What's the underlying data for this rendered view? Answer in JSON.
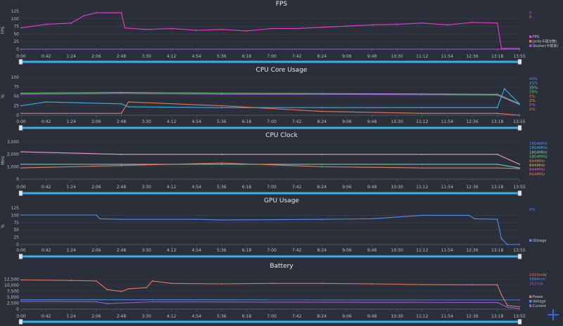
{
  "time_ticks": [
    "0:00",
    "0:42",
    "1:24",
    "2:06",
    "2:48",
    "3:30",
    "4:12",
    "4:54",
    "5:36",
    "6:18",
    "7:00",
    "7:42",
    "8:24",
    "9:06",
    "9:48",
    "10:30",
    "11:12",
    "11:54",
    "12:36",
    "13:18",
    "13:55"
  ],
  "colors": {
    "bg": "#2b2f3a",
    "grid": "#3c4150",
    "scrollbar": "#33b3ea",
    "zoom": "#2f6bd6"
  },
  "chart_data": [
    {
      "type": "line",
      "title": "FPS",
      "ylabel": "FPS",
      "ylim": [
        0,
        125
      ],
      "yticks": [
        0,
        25,
        50,
        75,
        100,
        125
      ],
      "x_range": [
        "0:00",
        "13:55"
      ],
      "grid": true,
      "legend_position": "right",
      "legend": [
        "FPS",
        "Jank(卡顿次数)",
        "Stutter(卡顿率)"
      ],
      "right_values": [
        {
          "text": "0",
          "color": "#9b59d0"
        },
        {
          "text": "0",
          "color": "#e8765c"
        }
      ],
      "series": [
        {
          "name": "FPS",
          "color": "#e83ccf",
          "points": [
            [
              "0:00",
              70
            ],
            [
              "0:42",
              82
            ],
            [
              "1:24",
              86
            ],
            [
              "1:45",
              110
            ],
            [
              "2:06",
              120
            ],
            [
              "2:48",
              120
            ],
            [
              "2:54",
              70
            ],
            [
              "3:30",
              65
            ],
            [
              "4:12",
              68
            ],
            [
              "4:54",
              62
            ],
            [
              "5:36",
              65
            ],
            [
              "6:18",
              60
            ],
            [
              "7:00",
              68
            ],
            [
              "7:42",
              68
            ],
            [
              "8:24",
              72
            ],
            [
              "9:06",
              76
            ],
            [
              "9:48",
              80
            ],
            [
              "10:30",
              82
            ],
            [
              "11:12",
              86
            ],
            [
              "11:54",
              80
            ],
            [
              "12:36",
              88
            ],
            [
              "13:18",
              86
            ],
            [
              "13:25",
              2
            ],
            [
              "13:55",
              2
            ]
          ]
        },
        {
          "name": "Jank(卡顿次数)",
          "color": "#e8765c",
          "points": [
            [
              "0:00",
              0
            ],
            [
              "13:55",
              0
            ]
          ]
        },
        {
          "name": "Stutter(卡顿率)",
          "color": "#9b59d0",
          "points": [
            [
              "0:00",
              0
            ],
            [
              "13:55",
              0
            ]
          ]
        }
      ]
    },
    {
      "type": "line",
      "title": "CPU Core Usage",
      "ylabel": "%",
      "ylim": [
        0,
        100
      ],
      "yticks": [
        0,
        25,
        50,
        75,
        100
      ],
      "x_range": [
        "0:00",
        "13:55"
      ],
      "grid": true,
      "legend_position": "right",
      "right_values": [
        {
          "text": "49%",
          "color": "#4f8df0"
        },
        {
          "text": "21%",
          "color": "#33b3ea"
        },
        {
          "text": "35%",
          "color": "#7fd0c8"
        },
        {
          "text": "29%",
          "color": "#5fd068"
        },
        {
          "text": "0%",
          "color": "#e8765c"
        },
        {
          "text": "2%",
          "color": "#e2b33c"
        },
        {
          "text": "0%",
          "color": "#d05fc8"
        },
        {
          "text": "0%",
          "color": "#e8765c"
        }
      ],
      "series": [
        {
          "color": "#5fd068",
          "points": [
            [
              "0:00",
              58
            ],
            [
              "2:48",
              60
            ],
            [
              "5:36",
              58
            ],
            [
              "8:24",
              57
            ],
            [
              "11:12",
              56
            ],
            [
              "13:18",
              55
            ],
            [
              "13:55",
              30
            ]
          ]
        },
        {
          "color": "#9b59d0",
          "points": [
            [
              "0:00",
              55
            ],
            [
              "2:48",
              57
            ],
            [
              "5:36",
              55
            ],
            [
              "8:24",
              55
            ],
            [
              "11:12",
              54
            ],
            [
              "13:18",
              53
            ],
            [
              "13:55",
              28
            ]
          ]
        },
        {
          "color": "#33b3ea",
          "points": [
            [
              "0:00",
              25
            ],
            [
              "0:42",
              35
            ],
            [
              "2:48",
              30
            ],
            [
              "3:00",
              22
            ],
            [
              "5:36",
              20
            ],
            [
              "8:24",
              20
            ],
            [
              "11:12",
              20
            ],
            [
              "13:18",
              20
            ],
            [
              "13:30",
              70
            ],
            [
              "13:55",
              30
            ]
          ]
        },
        {
          "color": "#e8765c",
          "points": [
            [
              "0:00",
              5
            ],
            [
              "2:48",
              5
            ],
            [
              "3:00",
              35
            ],
            [
              "5:36",
              25
            ],
            [
              "8:24",
              10
            ],
            [
              "11:12",
              5
            ],
            [
              "13:18",
              5
            ],
            [
              "13:55",
              0
            ]
          ]
        }
      ]
    },
    {
      "type": "line",
      "title": "CPU Clock",
      "ylabel": "MHz",
      "ylim": [
        0,
        3000
      ],
      "yticks": [
        0,
        1000,
        2000,
        3000
      ],
      "x_range": [
        "0:00",
        "13:55"
      ],
      "grid": true,
      "legend_position": "right",
      "right_values": [
        {
          "text": "1804MHz",
          "color": "#4f8df0"
        },
        {
          "text": "1804MHz",
          "color": "#33b3ea"
        },
        {
          "text": "1804MHz",
          "color": "#7fd0c8"
        },
        {
          "text": "1804MHz",
          "color": "#5fd068"
        },
        {
          "text": "844MHz",
          "color": "#e8765c"
        },
        {
          "text": "844MHz",
          "color": "#e2b33c"
        },
        {
          "text": "844MHz",
          "color": "#d05fc8"
        },
        {
          "text": "844MHz",
          "color": "#e8765c"
        }
      ],
      "series": [
        {
          "color": "#e89acb",
          "points": [
            [
              "0:00",
              2200
            ],
            [
              "2:48",
              2000
            ],
            [
              "5:36",
              2000
            ],
            [
              "8:24",
              2000
            ],
            [
              "11:12",
              2000
            ],
            [
              "13:18",
              2000
            ],
            [
              "13:55",
              1200
            ]
          ]
        },
        {
          "color": "#5fd0b0",
          "points": [
            [
              "0:00",
              1200
            ],
            [
              "2:48",
              1200
            ],
            [
              "5:36",
              1200
            ],
            [
              "8:24",
              1200
            ],
            [
              "11:12",
              1200
            ],
            [
              "13:18",
              1200
            ],
            [
              "13:55",
              900
            ]
          ]
        },
        {
          "color": "#e8765c",
          "points": [
            [
              "0:00",
              900
            ],
            [
              "2:48",
              1100
            ],
            [
              "5:36",
              1300
            ],
            [
              "8:24",
              1000
            ],
            [
              "11:12",
              900
            ],
            [
              "13:18",
              900
            ],
            [
              "13:55",
              844
            ]
          ]
        }
      ]
    },
    {
      "type": "line",
      "title": "GPU Usage",
      "ylabel": "%",
      "ylim": [
        0,
        125
      ],
      "yticks": [
        0,
        25,
        50,
        75,
        100,
        125
      ],
      "x_range": [
        "0:00",
        "13:55"
      ],
      "grid": true,
      "legend_position": "right",
      "legend": [
        "GUsage"
      ],
      "right_values": [
        {
          "text": "0%",
          "color": "#4f8df0"
        }
      ],
      "series": [
        {
          "name": "GUsage",
          "color": "#4f8df0",
          "points": [
            [
              "0:00",
              101
            ],
            [
              "2:06",
              101
            ],
            [
              "2:12",
              88
            ],
            [
              "2:48",
              86
            ],
            [
              "4:54",
              86
            ],
            [
              "5:36",
              84
            ],
            [
              "8:24",
              86
            ],
            [
              "9:48",
              88
            ],
            [
              "11:12",
              100
            ],
            [
              "12:30",
              100
            ],
            [
              "12:40",
              88
            ],
            [
              "13:18",
              86
            ],
            [
              "13:25",
              20
            ],
            [
              "13:35",
              0
            ],
            [
              "13:55",
              0
            ]
          ]
        }
      ]
    },
    {
      "type": "line",
      "title": "Battery",
      "ylim": [
        0,
        15000
      ],
      "yticks": [
        0,
        2500,
        5000,
        7500,
        10000,
        12500
      ],
      "x_range": [
        "0:00",
        "13:55"
      ],
      "grid": true,
      "legend_position": "right",
      "legend": [
        "Power",
        "Voltage",
        "Current"
      ],
      "right_values": [
        {
          "text": "1025mW",
          "color": "#e8765c"
        },
        {
          "text": "3894mV",
          "color": "#4f8df0"
        },
        {
          "text": "263mA",
          "color": "#9b59d0"
        }
      ],
      "series": [
        {
          "name": "Power",
          "color": "#e8765c",
          "points": [
            [
              "0:00",
              12200
            ],
            [
              "1:24",
              12000
            ],
            [
              "2:06",
              11800
            ],
            [
              "2:24",
              8200
            ],
            [
              "2:48",
              7400
            ],
            [
              "3:00",
              8500
            ],
            [
              "3:30",
              9000
            ],
            [
              "3:40",
              11800
            ],
            [
              "4:12",
              10800
            ],
            [
              "5:36",
              10600
            ],
            [
              "7:00",
              10800
            ],
            [
              "8:24",
              10800
            ],
            [
              "9:48",
              10600
            ],
            [
              "11:12",
              10300
            ],
            [
              "12:36",
              10200
            ],
            [
              "13:18",
              10200
            ],
            [
              "13:25",
              6000
            ],
            [
              "13:35",
              1500
            ],
            [
              "13:55",
              1025
            ]
          ]
        },
        {
          "name": "Voltage",
          "color": "#4f8df0",
          "points": [
            [
              "0:00",
              3900
            ],
            [
              "13:55",
              3894
            ]
          ]
        },
        {
          "name": "Current",
          "color": "#9b59d0",
          "points": [
            [
              "0:00",
              3200
            ],
            [
              "2:06",
              3100
            ],
            [
              "2:24",
              2300
            ],
            [
              "3:40",
              3100
            ],
            [
              "8:24",
              2900
            ],
            [
              "13:18",
              2800
            ],
            [
              "13:35",
              800
            ],
            [
              "13:55",
              263
            ]
          ]
        }
      ]
    }
  ]
}
